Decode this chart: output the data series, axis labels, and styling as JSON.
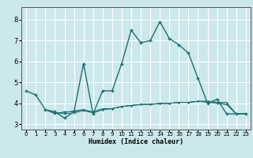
{
  "xlabel": "Humidex (Indice chaleur)",
  "bg_color": "#cce8ec",
  "line_color": "#1e7070",
  "grid_color": "#ffffff",
  "xlim": [
    -0.5,
    23.5
  ],
  "ylim": [
    2.75,
    8.6
  ],
  "xticks": [
    0,
    1,
    2,
    3,
    4,
    5,
    6,
    7,
    8,
    9,
    10,
    11,
    12,
    13,
    14,
    15,
    16,
    17,
    18,
    19,
    20,
    21,
    22,
    23
  ],
  "yticks": [
    3,
    4,
    5,
    6,
    7,
    8
  ],
  "series": [
    {
      "x": [
        0,
        1,
        2,
        3,
        4,
        5,
        6,
        7,
        8,
        9,
        10,
        11,
        12,
        13,
        14,
        15,
        16,
        17,
        18,
        19,
        20,
        21,
        22,
        23
      ],
      "y": [
        4.6,
        4.4,
        3.7,
        3.6,
        3.3,
        3.6,
        5.9,
        3.5,
        4.6,
        4.6,
        5.9,
        7.5,
        6.9,
        7.0,
        7.9,
        7.1,
        6.8,
        6.4,
        5.2,
        4.0,
        4.2,
        3.5,
        3.5,
        3.5
      ]
    },
    {
      "x": [
        2,
        3,
        4,
        5,
        6,
        7,
        8,
        9,
        10,
        11,
        12,
        13,
        14,
        15,
        16,
        17,
        18,
        19,
        20,
        21,
        22,
        23
      ],
      "y": [
        3.7,
        3.55,
        3.55,
        3.65,
        3.7,
        3.55,
        3.7,
        3.75,
        3.85,
        3.9,
        3.95,
        3.95,
        4.0,
        4.0,
        4.05,
        4.05,
        4.1,
        4.05,
        4.0,
        3.95,
        3.5,
        3.5
      ]
    },
    {
      "x": [
        2,
        3,
        4,
        5,
        6,
        7,
        8,
        9,
        10,
        11,
        12,
        13,
        14,
        15,
        16,
        17,
        18,
        19,
        20,
        21,
        22,
        23
      ],
      "y": [
        3.7,
        3.5,
        3.6,
        3.6,
        3.7,
        3.6,
        3.75,
        3.75,
        3.85,
        3.9,
        3.95,
        3.95,
        4.0,
        4.0,
        4.05,
        4.05,
        4.1,
        4.1,
        4.05,
        4.05,
        3.5,
        3.5
      ]
    },
    {
      "x": [
        2,
        3,
        4,
        5,
        6,
        7,
        8,
        9,
        10,
        11,
        12,
        13,
        14,
        15,
        16,
        17,
        18,
        19,
        20,
        21,
        22,
        23
      ],
      "y": [
        3.7,
        3.55,
        3.5,
        3.55,
        3.65,
        3.55,
        3.7,
        3.75,
        3.85,
        3.9,
        3.95,
        3.95,
        4.0,
        4.0,
        4.05,
        4.05,
        4.1,
        4.1,
        4.05,
        3.95,
        3.5,
        3.5
      ]
    }
  ]
}
